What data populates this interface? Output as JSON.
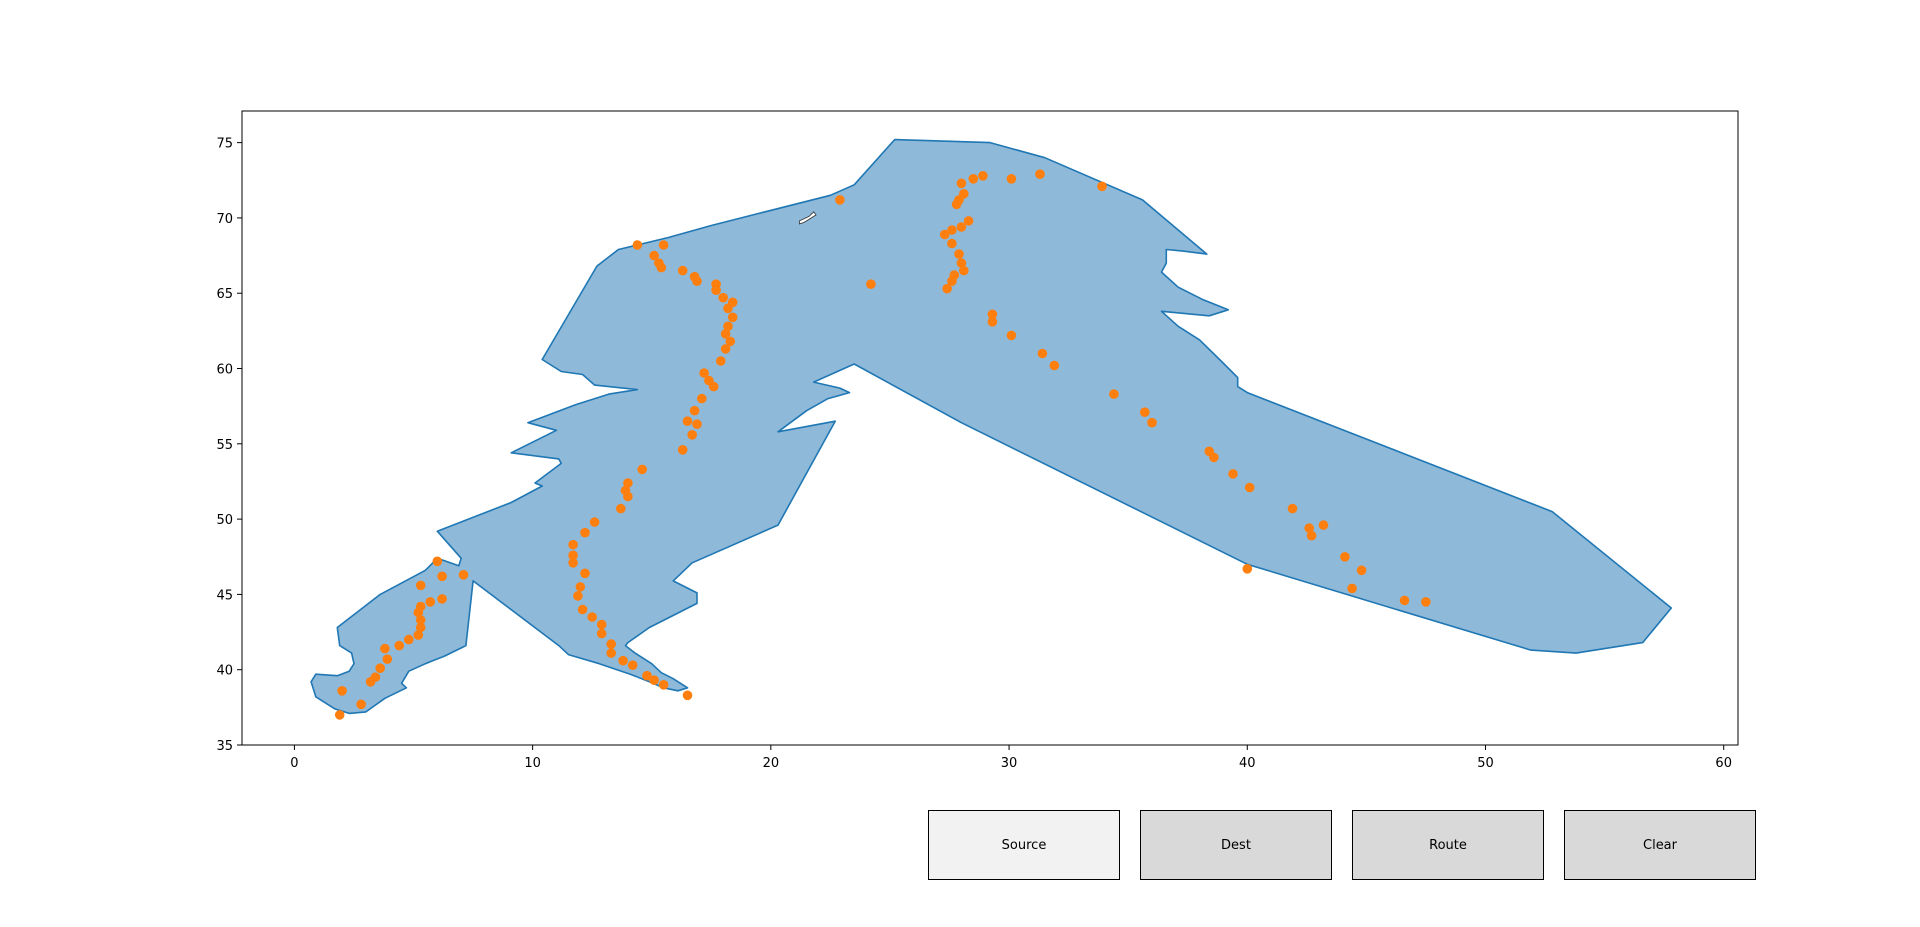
{
  "chart_data": {
    "type": "scatter",
    "title": "",
    "xlabel": "",
    "ylabel": "",
    "xlim": [
      -2.2,
      60.6
    ],
    "ylim": [
      35,
      77.1
    ],
    "x_ticks": [
      0,
      10,
      20,
      30,
      40,
      50,
      60
    ],
    "y_ticks": [
      35,
      40,
      45,
      50,
      55,
      60,
      65,
      70,
      75
    ],
    "grid": false,
    "colors": {
      "region_fill": "#8fb9d9",
      "region_edge": "#1f77b4",
      "points": "#ff7f0e",
      "hole_fill": "#ffffff"
    },
    "region_outline": [
      [
        25.2,
        75.2
      ],
      [
        29.2,
        75.0
      ],
      [
        31.5,
        74.0
      ],
      [
        35.6,
        71.2
      ],
      [
        38.3,
        67.6
      ],
      [
        37.3,
        67.8
      ],
      [
        36.6,
        67.9
      ],
      [
        36.6,
        67.0
      ],
      [
        36.4,
        66.4
      ],
      [
        37.1,
        65.4
      ],
      [
        38.1,
        64.6
      ],
      [
        39.2,
        63.9
      ],
      [
        38.4,
        63.5
      ],
      [
        36.4,
        63.8
      ],
      [
        37.1,
        62.8
      ],
      [
        38.0,
        61.9
      ],
      [
        38.9,
        60.5
      ],
      [
        39.6,
        59.4
      ],
      [
        39.6,
        58.8
      ],
      [
        40.0,
        58.4
      ],
      [
        52.8,
        50.5
      ],
      [
        57.8,
        44.1
      ],
      [
        56.6,
        41.8
      ],
      [
        53.8,
        41.1
      ],
      [
        51.9,
        41.3
      ],
      [
        40.0,
        47.0
      ],
      [
        28.0,
        56.4
      ],
      [
        23.5,
        60.3
      ],
      [
        21.8,
        59.1
      ],
      [
        22.9,
        58.7
      ],
      [
        23.3,
        58.4
      ],
      [
        22.4,
        58.0
      ],
      [
        21.5,
        57.2
      ],
      [
        20.3,
        55.8
      ],
      [
        22.7,
        56.5
      ],
      [
        20.3,
        49.6
      ],
      [
        16.7,
        47.1
      ],
      [
        15.9,
        45.9
      ],
      [
        16.4,
        45.5
      ],
      [
        16.9,
        45.1
      ],
      [
        16.9,
        44.4
      ],
      [
        14.9,
        42.8
      ],
      [
        14.0,
        41.8
      ],
      [
        13.9,
        41.6
      ],
      [
        14.3,
        41.1
      ],
      [
        15.0,
        40.4
      ],
      [
        15.4,
        39.8
      ],
      [
        15.9,
        39.4
      ],
      [
        16.5,
        38.8
      ],
      [
        16.1,
        38.6
      ],
      [
        15.5,
        38.8
      ],
      [
        14.9,
        39.2
      ],
      [
        14.1,
        39.7
      ],
      [
        12.8,
        40.4
      ],
      [
        11.5,
        41.0
      ],
      [
        11.1,
        41.6
      ],
      [
        7.5,
        45.9
      ],
      [
        7.2,
        41.6
      ],
      [
        6.3,
        40.9
      ],
      [
        5.8,
        40.6
      ],
      [
        5.5,
        40.4
      ],
      [
        4.8,
        39.9
      ],
      [
        4.5,
        39.1
      ],
      [
        4.7,
        38.8
      ],
      [
        3.8,
        38.1
      ],
      [
        3.0,
        37.2
      ],
      [
        2.3,
        37.1
      ],
      [
        1.7,
        37.4
      ],
      [
        0.9,
        38.2
      ],
      [
        0.7,
        39.2
      ],
      [
        0.9,
        39.7
      ],
      [
        1.8,
        39.6
      ],
      [
        2.3,
        39.9
      ],
      [
        2.5,
        40.4
      ],
      [
        2.4,
        41.1
      ],
      [
        1.9,
        41.6
      ],
      [
        1.8,
        42.8
      ],
      [
        3.6,
        45.0
      ],
      [
        5.5,
        46.6
      ],
      [
        6.0,
        47.4
      ],
      [
        6.9,
        46.9
      ],
      [
        7.0,
        47.4
      ],
      [
        6.0,
        49.2
      ],
      [
        9.1,
        51.1
      ],
      [
        10.4,
        52.2
      ],
      [
        10.1,
        52.4
      ],
      [
        11.2,
        53.7
      ],
      [
        11.1,
        54.0
      ],
      [
        9.1,
        54.4
      ],
      [
        11.0,
        55.9
      ],
      [
        9.8,
        56.4
      ],
      [
        11.8,
        57.6
      ],
      [
        13.2,
        58.3
      ],
      [
        14.4,
        58.6
      ],
      [
        12.6,
        58.9
      ],
      [
        12.1,
        59.6
      ],
      [
        11.2,
        59.8
      ],
      [
        10.9,
        60.1
      ],
      [
        10.4,
        60.6
      ],
      [
        12.7,
        66.8
      ],
      [
        13.6,
        67.9
      ],
      [
        15.7,
        68.7
      ],
      [
        17.5,
        69.5
      ],
      [
        19.5,
        70.3
      ],
      [
        22.5,
        71.5
      ],
      [
        23.5,
        72.2
      ]
    ],
    "hole": [
      [
        21.2,
        69.8
      ],
      [
        21.6,
        70.1
      ],
      [
        21.8,
        70.4
      ],
      [
        21.9,
        70.2
      ],
      [
        21.6,
        69.9
      ],
      [
        21.4,
        69.7
      ],
      [
        21.2,
        69.6
      ]
    ],
    "points": [
      [
        1.9,
        37.0
      ],
      [
        2.0,
        38.6
      ],
      [
        2.8,
        37.7
      ],
      [
        3.2,
        39.2
      ],
      [
        3.4,
        39.5
      ],
      [
        3.6,
        40.1
      ],
      [
        3.9,
        40.7
      ],
      [
        3.8,
        41.4
      ],
      [
        4.4,
        41.6
      ],
      [
        4.8,
        42.0
      ],
      [
        5.2,
        42.3
      ],
      [
        5.3,
        42.8
      ],
      [
        5.3,
        43.3
      ],
      [
        5.2,
        43.8
      ],
      [
        5.3,
        44.2
      ],
      [
        5.7,
        44.5
      ],
      [
        5.3,
        45.6
      ],
      [
        6.2,
        44.7
      ],
      [
        6.2,
        46.2
      ],
      [
        6.0,
        47.2
      ],
      [
        7.1,
        46.3
      ],
      [
        15.5,
        39.0
      ],
      [
        15.1,
        39.3
      ],
      [
        14.8,
        39.6
      ],
      [
        16.5,
        38.3
      ],
      [
        14.2,
        40.3
      ],
      [
        13.8,
        40.6
      ],
      [
        13.3,
        41.1
      ],
      [
        13.3,
        41.7
      ],
      [
        12.9,
        42.4
      ],
      [
        12.9,
        43.0
      ],
      [
        12.5,
        43.5
      ],
      [
        12.1,
        44.0
      ],
      [
        11.9,
        44.9
      ],
      [
        12.0,
        45.5
      ],
      [
        12.2,
        46.4
      ],
      [
        11.7,
        47.1
      ],
      [
        11.7,
        47.6
      ],
      [
        11.7,
        48.3
      ],
      [
        12.2,
        49.1
      ],
      [
        12.6,
        49.8
      ],
      [
        13.7,
        50.7
      ],
      [
        14.0,
        51.5
      ],
      [
        13.9,
        51.9
      ],
      [
        14.0,
        52.4
      ],
      [
        14.6,
        53.3
      ],
      [
        16.3,
        54.6
      ],
      [
        16.7,
        55.6
      ],
      [
        16.9,
        56.3
      ],
      [
        16.5,
        56.5
      ],
      [
        16.8,
        57.2
      ],
      [
        17.1,
        58.0
      ],
      [
        17.6,
        58.8
      ],
      [
        17.4,
        59.2
      ],
      [
        17.2,
        59.7
      ],
      [
        17.9,
        60.5
      ],
      [
        18.1,
        61.3
      ],
      [
        18.3,
        61.8
      ],
      [
        18.1,
        62.3
      ],
      [
        18.2,
        62.8
      ],
      [
        18.4,
        63.4
      ],
      [
        18.2,
        64.0
      ],
      [
        18.4,
        64.4
      ],
      [
        18.0,
        64.7
      ],
      [
        17.7,
        65.2
      ],
      [
        17.7,
        65.6
      ],
      [
        16.9,
        65.8
      ],
      [
        16.8,
        66.1
      ],
      [
        16.3,
        66.5
      ],
      [
        15.4,
        66.7
      ],
      [
        15.3,
        67.0
      ],
      [
        15.1,
        67.5
      ],
      [
        15.5,
        68.2
      ],
      [
        14.4,
        68.2
      ],
      [
        22.9,
        71.2
      ],
      [
        24.2,
        65.6
      ],
      [
        27.4,
        65.3
      ],
      [
        27.6,
        65.8
      ],
      [
        27.7,
        66.2
      ],
      [
        28.1,
        66.5
      ],
      [
        28.0,
        67.0
      ],
      [
        27.9,
        67.6
      ],
      [
        27.6,
        68.3
      ],
      [
        27.3,
        68.9
      ],
      [
        27.6,
        69.2
      ],
      [
        28.0,
        69.4
      ],
      [
        28.3,
        69.8
      ],
      [
        27.8,
        70.9
      ],
      [
        27.9,
        71.2
      ],
      [
        28.1,
        71.6
      ],
      [
        28.0,
        72.3
      ],
      [
        28.5,
        72.6
      ],
      [
        28.9,
        72.8
      ],
      [
        30.1,
        72.6
      ],
      [
        31.3,
        72.9
      ],
      [
        33.9,
        72.1
      ],
      [
        29.3,
        63.6
      ],
      [
        29.3,
        63.1
      ],
      [
        30.1,
        62.2
      ],
      [
        31.4,
        61.0
      ],
      [
        31.9,
        60.2
      ],
      [
        34.4,
        58.3
      ],
      [
        35.7,
        57.1
      ],
      [
        36.0,
        56.4
      ],
      [
        38.4,
        54.5
      ],
      [
        38.6,
        54.1
      ],
      [
        39.4,
        53.0
      ],
      [
        40.1,
        52.1
      ],
      [
        41.9,
        50.7
      ],
      [
        42.6,
        49.4
      ],
      [
        42.7,
        48.9
      ],
      [
        43.2,
        49.6
      ],
      [
        44.1,
        47.5
      ],
      [
        44.8,
        46.6
      ],
      [
        44.4,
        45.4
      ],
      [
        46.6,
        44.6
      ],
      [
        47.5,
        44.5
      ],
      [
        40.0,
        46.7
      ]
    ]
  },
  "buttons": [
    {
      "id": "source",
      "label": "Source",
      "active": true
    },
    {
      "id": "dest",
      "label": "Dest",
      "active": false
    },
    {
      "id": "route",
      "label": "Route",
      "active": false
    },
    {
      "id": "clear",
      "label": "Clear",
      "active": false
    }
  ]
}
